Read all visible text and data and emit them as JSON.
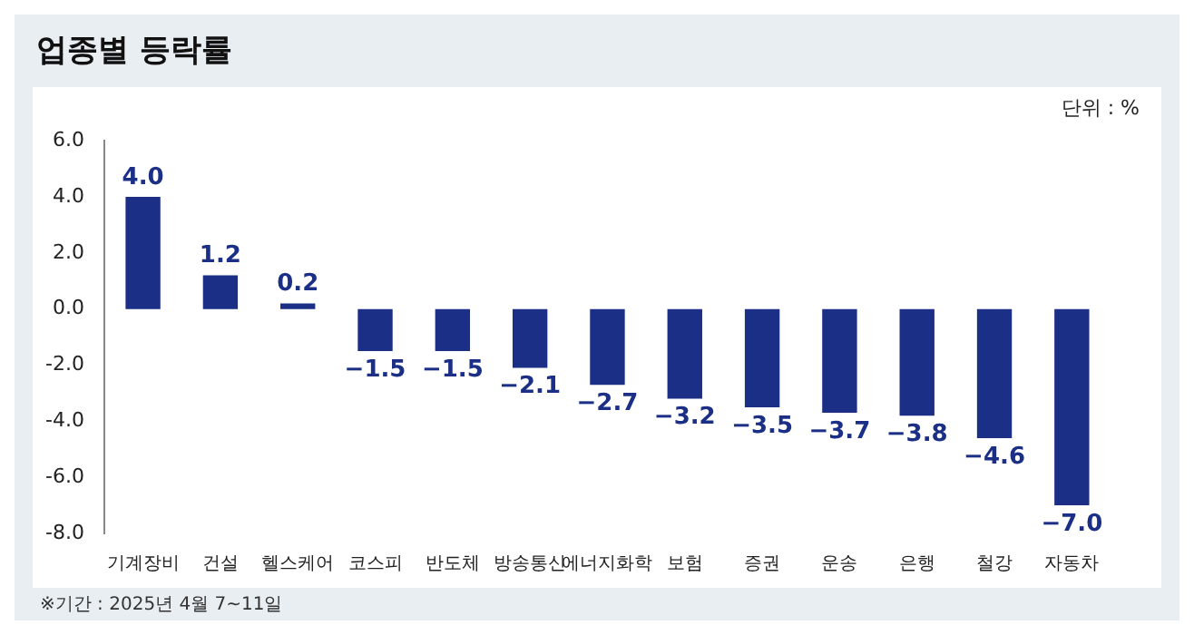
{
  "chart_data": {
    "type": "bar",
    "title": "업종별 등락률",
    "categories": [
      "기계장비",
      "건설",
      "헬스케어",
      "코스피",
      "반도체",
      "방송통신",
      "에너지화학",
      "보험",
      "증권",
      "운송",
      "은행",
      "철강",
      "자동차"
    ],
    "values": [
      4.0,
      1.2,
      0.2,
      -1.5,
      -1.5,
      -2.1,
      -2.7,
      -3.2,
      -3.5,
      -3.7,
      -3.8,
      -4.6,
      -7.0
    ],
    "color": "#1b2f86",
    "ylim": [
      -8,
      6
    ],
    "yticks": [
      {
        "value": -8,
        "label": "-8.0"
      },
      {
        "value": -6,
        "label": "-6.0"
      },
      {
        "value": -4,
        "label": "-4.0"
      },
      {
        "value": -2,
        "label": "-2.0"
      },
      {
        "value": 0,
        "label": "0.0"
      },
      {
        "value": 2,
        "label": "2.0"
      },
      {
        "value": 4,
        "label": "4.0"
      },
      {
        "value": 6,
        "label": "6.0"
      }
    ],
    "value_labels": [
      "4.0",
      "1.2",
      "0.2",
      "−1.5",
      "−1.5",
      "−2.1",
      "−2.7",
      "−3.2",
      "−3.5",
      "−3.7",
      "−3.8",
      "−4.6",
      "−7.0"
    ],
    "grid": false,
    "annotations": [
      "단위 : %",
      "※기간 : 2025년 4월 7~11일"
    ]
  }
}
